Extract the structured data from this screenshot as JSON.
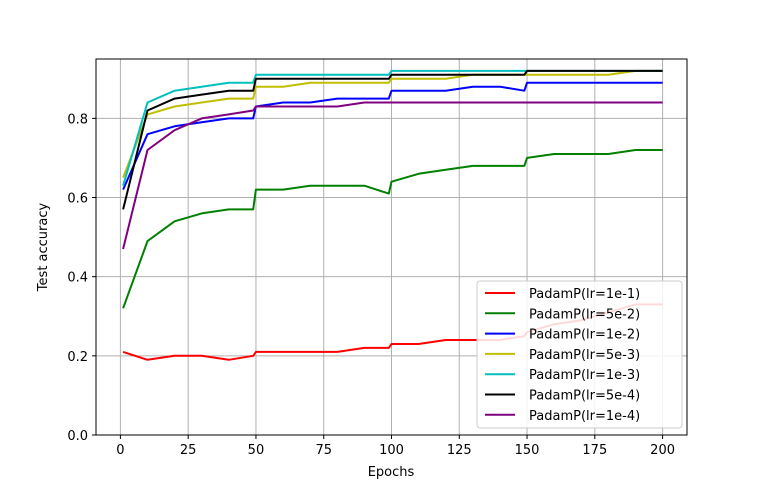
{
  "chart_data": {
    "type": "line",
    "xlabel": "Epochs",
    "ylabel": "Test accuracy",
    "xlim": [
      -9,
      209
    ],
    "ylim": [
      0.0,
      0.95
    ],
    "xticks": [
      0,
      25,
      50,
      75,
      100,
      125,
      150,
      175,
      200
    ],
    "yticks": [
      0.0,
      0.2,
      0.4,
      0.6,
      0.8
    ],
    "grid": true,
    "legend_position": "lower-right",
    "x": [
      1,
      10,
      20,
      30,
      40,
      49,
      50,
      60,
      70,
      80,
      90,
      99,
      100,
      110,
      120,
      130,
      140,
      149,
      150,
      160,
      170,
      180,
      190,
      200
    ],
    "series": [
      {
        "name": "PadamP(lr=1e-1)",
        "color": "#ff0000",
        "values": [
          0.21,
          0.19,
          0.2,
          0.2,
          0.19,
          0.2,
          0.21,
          0.21,
          0.21,
          0.21,
          0.22,
          0.22,
          0.23,
          0.23,
          0.24,
          0.24,
          0.24,
          0.25,
          0.26,
          0.28,
          0.29,
          0.31,
          0.33,
          0.33
        ]
      },
      {
        "name": "PadamP(lr=5e-2)",
        "color": "#008000",
        "values": [
          0.32,
          0.49,
          0.54,
          0.56,
          0.57,
          0.57,
          0.62,
          0.62,
          0.63,
          0.63,
          0.63,
          0.61,
          0.64,
          0.66,
          0.67,
          0.68,
          0.68,
          0.68,
          0.7,
          0.71,
          0.71,
          0.71,
          0.72,
          0.72
        ]
      },
      {
        "name": "PadamP(lr=1e-2)",
        "color": "#0000ff",
        "values": [
          0.62,
          0.76,
          0.78,
          0.79,
          0.8,
          0.8,
          0.83,
          0.84,
          0.84,
          0.85,
          0.85,
          0.85,
          0.87,
          0.87,
          0.87,
          0.88,
          0.88,
          0.87,
          0.89,
          0.89,
          0.89,
          0.89,
          0.89,
          0.89
        ]
      },
      {
        "name": "PadamP(lr=5e-3)",
        "color": "#bfbf00",
        "values": [
          0.65,
          0.81,
          0.83,
          0.84,
          0.85,
          0.85,
          0.88,
          0.88,
          0.89,
          0.89,
          0.89,
          0.89,
          0.9,
          0.9,
          0.9,
          0.91,
          0.91,
          0.91,
          0.91,
          0.91,
          0.91,
          0.91,
          0.92,
          0.92
        ]
      },
      {
        "name": "PadamP(lr=1e-3)",
        "color": "#00bfbf",
        "values": [
          0.63,
          0.84,
          0.87,
          0.88,
          0.89,
          0.89,
          0.91,
          0.91,
          0.91,
          0.91,
          0.91,
          0.91,
          0.92,
          0.92,
          0.92,
          0.92,
          0.92,
          0.92,
          0.92,
          0.92,
          0.92,
          0.92,
          0.92,
          0.92
        ]
      },
      {
        "name": "PadamP(lr=5e-4)",
        "color": "#000000",
        "values": [
          0.57,
          0.82,
          0.85,
          0.86,
          0.87,
          0.87,
          0.9,
          0.9,
          0.9,
          0.9,
          0.9,
          0.9,
          0.91,
          0.91,
          0.91,
          0.91,
          0.91,
          0.91,
          0.92,
          0.92,
          0.92,
          0.92,
          0.92,
          0.92
        ]
      },
      {
        "name": "PadamP(lr=1e-4)",
        "color": "#800080",
        "values": [
          0.47,
          0.72,
          0.77,
          0.8,
          0.81,
          0.82,
          0.83,
          0.83,
          0.83,
          0.83,
          0.84,
          0.84,
          0.84,
          0.84,
          0.84,
          0.84,
          0.84,
          0.84,
          0.84,
          0.84,
          0.84,
          0.84,
          0.84,
          0.84
        ]
      }
    ]
  }
}
